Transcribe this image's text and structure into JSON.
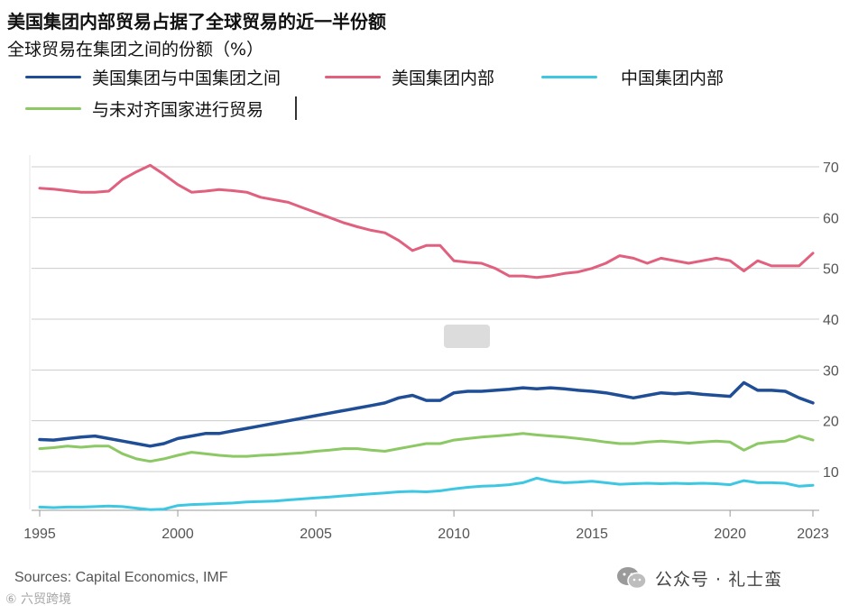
{
  "header": {
    "title": "美国集团内部贸易占据了全球贸易的近一半份额",
    "subtitle": "全球贸易在集团之间的份额（%）"
  },
  "colors": {
    "us_china": "#1f4e96",
    "us_bloc": "#e0607e",
    "china_bloc": "#3ec7e2",
    "nonaligned": "#8cc863",
    "grid": "#cccccc",
    "axis_text": "#555555"
  },
  "chart_data": {
    "type": "line",
    "title": "美国集团内部贸易占据了全球贸易的近一半份额",
    "subtitle": "全球贸易在集团之间的份额（%）",
    "xlabel": "",
    "ylabel": "",
    "x_ticks": [
      "1995",
      "2000",
      "2005",
      "2010",
      "2015",
      "2020",
      "2023"
    ],
    "x_tick_values": [
      1995,
      2000,
      2005,
      2010,
      2015,
      2020,
      2023
    ],
    "y_ticks": [
      "10",
      "20",
      "30",
      "40",
      "50",
      "60",
      "70"
    ],
    "y_tick_values": [
      10,
      20,
      30,
      40,
      50,
      60,
      70
    ],
    "xlim": [
      1995,
      2023
    ],
    "ylim": [
      4,
      72
    ],
    "grid": true,
    "y_axis_side": "right",
    "x": [
      1995,
      1995.5,
      1996,
      1996.5,
      1997,
      1997.5,
      1998,
      1998.5,
      1999,
      1999.5,
      2000,
      2000.5,
      2001,
      2001.5,
      2002,
      2002.5,
      2003,
      2003.5,
      2004,
      2004.5,
      2005,
      2005.5,
      2006,
      2006.5,
      2007,
      2007.5,
      2008,
      2008.5,
      2009,
      2009.5,
      2010,
      2010.5,
      2011,
      2011.5,
      2012,
      2012.5,
      2013,
      2013.5,
      2014,
      2014.5,
      2015,
      2015.5,
      2016,
      2016.5,
      2017,
      2017.5,
      2018,
      2018.5,
      2019,
      2019.5,
      2020,
      2020.5,
      2021,
      2021.5,
      2022,
      2022.5,
      2023
    ],
    "series": [
      {
        "name": "美国集团与中国集团之间",
        "color": "#1f4e96",
        "values": [
          16.3,
          16.2,
          16.5,
          16.8,
          17.0,
          16.5,
          16.0,
          15.5,
          15.0,
          15.5,
          16.5,
          17.0,
          17.5,
          17.5,
          18.0,
          18.5,
          19.0,
          19.5,
          20.0,
          20.5,
          21.0,
          21.5,
          22.0,
          22.5,
          23.0,
          23.5,
          24.5,
          25.0,
          24.0,
          24.0,
          25.5,
          25.8,
          25.8,
          26.0,
          26.2,
          26.5,
          26.3,
          26.5,
          26.3,
          26.0,
          25.8,
          25.5,
          25.0,
          24.5,
          25.0,
          25.5,
          25.3,
          25.5,
          25.2,
          25.0,
          24.8,
          27.5,
          26.0,
          26.0,
          25.8,
          24.5,
          23.5
        ]
      },
      {
        "name": "美国集团内部",
        "color": "#e0607e",
        "values": [
          65.8,
          65.6,
          65.3,
          65.0,
          65.0,
          65.2,
          67.5,
          69.0,
          70.3,
          68.5,
          66.5,
          65.0,
          65.2,
          65.5,
          65.3,
          65.0,
          64.0,
          63.5,
          63.0,
          62.0,
          61.0,
          60.0,
          59.0,
          58.2,
          57.5,
          57.0,
          55.5,
          53.5,
          54.5,
          54.5,
          51.5,
          51.2,
          51.0,
          50.0,
          48.5,
          48.5,
          48.2,
          48.5,
          49.0,
          49.3,
          50.0,
          51.0,
          52.5,
          52.0,
          51.0,
          52.0,
          51.5,
          51.0,
          51.5,
          52.0,
          51.5,
          49.5,
          51.5,
          50.5,
          50.5,
          50.5,
          53.0
        ]
      },
      {
        "name": "中国集团内部",
        "color": "#3ec7e2",
        "values": [
          3.0,
          2.9,
          3.0,
          3.0,
          3.1,
          3.2,
          3.1,
          2.8,
          2.5,
          2.6,
          3.3,
          3.5,
          3.6,
          3.7,
          3.8,
          4.0,
          4.1,
          4.2,
          4.4,
          4.6,
          4.8,
          5.0,
          5.2,
          5.4,
          5.6,
          5.8,
          6.0,
          6.1,
          6.0,
          6.2,
          6.6,
          6.9,
          7.1,
          7.2,
          7.4,
          7.8,
          8.7,
          8.1,
          7.8,
          7.9,
          8.1,
          7.8,
          7.5,
          7.6,
          7.7,
          7.6,
          7.7,
          7.6,
          7.7,
          7.6,
          7.4,
          8.2,
          7.8,
          7.8,
          7.7,
          7.1,
          7.3
        ]
      },
      {
        "name": "与未对齐国家进行贸易",
        "color": "#8cc863",
        "values": [
          14.5,
          14.7,
          15.0,
          14.8,
          15.0,
          15.0,
          13.5,
          12.5,
          12.0,
          12.5,
          13.2,
          13.8,
          13.5,
          13.2,
          13.0,
          13.0,
          13.2,
          13.3,
          13.5,
          13.7,
          14.0,
          14.2,
          14.5,
          14.5,
          14.2,
          14.0,
          14.5,
          15.0,
          15.5,
          15.5,
          16.2,
          16.5,
          16.8,
          17.0,
          17.2,
          17.5,
          17.2,
          17.0,
          16.8,
          16.5,
          16.2,
          15.8,
          15.5,
          15.5,
          15.8,
          16.0,
          15.8,
          15.6,
          15.8,
          16.0,
          15.8,
          14.2,
          15.5,
          15.8,
          16.0,
          17.0,
          16.2
        ]
      }
    ]
  },
  "legend": {
    "items": [
      {
        "label": "美国集团与中国集团之间"
      },
      {
        "label": "美国集团内部"
      },
      {
        "label": "中国集团内部"
      },
      {
        "label": "与未对齐国家进行贸易"
      }
    ]
  },
  "source": {
    "text": "Sources: Capital Economics, IMF"
  },
  "watermark": {
    "left_text": "⑥ 六贸跨境",
    "right_text": "公众号 · 礼士蛮",
    "right_icon": "wechat-icon"
  }
}
